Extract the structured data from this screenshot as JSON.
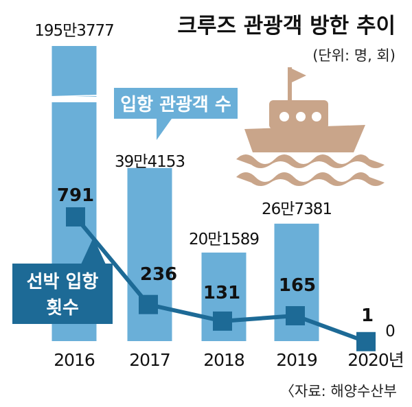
{
  "chart_data": {
    "type": "bar",
    "title": "크루즈 관광객 방한 추이",
    "unit_note": "(단위: 명, 회)",
    "source": "〈자료: 해양수산부",
    "categories": [
      "2016",
      "2017",
      "2018",
      "2019",
      "2020년"
    ],
    "series": [
      {
        "name": "입항 관광객 수",
        "chart": "bar",
        "values": [
          1953777,
          394153,
          201589,
          267381,
          0
        ],
        "labels": [
          "195만3777",
          "39만4153",
          "20만1589",
          "26만7381",
          "0"
        ],
        "axis_break": true
      },
      {
        "name": "선박 입항 횟수",
        "chart": "line",
        "values": [
          791,
          236,
          131,
          165,
          1
        ],
        "labels": [
          "791",
          "236",
          "131",
          "165",
          "1"
        ]
      }
    ],
    "colors": {
      "bar": "#6aafd8",
      "line": "#1d6a96",
      "callout_bar": "#6aafd8",
      "callout_line": "#1d6a96",
      "ship": "#c9a58a",
      "text": "#111111"
    },
    "grid": false
  }
}
